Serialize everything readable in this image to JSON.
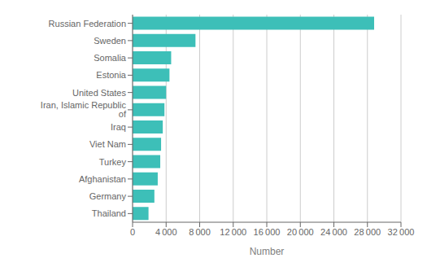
{
  "chart_data": {
    "type": "bar",
    "orientation": "horizontal",
    "categories": [
      "Thailand",
      "Germany",
      "Afghanistan",
      "Turkey",
      "Viet Nam",
      "Iraq",
      "Iran, Islamic Republic of",
      "United States",
      "Estonia",
      "Somalia",
      "Sweden",
      "Russian Federation"
    ],
    "values": [
      1900,
      2600,
      3000,
      3300,
      3400,
      3600,
      3800,
      4000,
      4400,
      4600,
      7500,
      28800
    ],
    "color": "#3dbfb8",
    "xlabel": "Number",
    "xlim": [
      0,
      32000
    ],
    "xticks": [
      0,
      {
        "value": 4000,
        "label": "4 000"
      },
      {
        "value": 8000,
        "label": "8 000"
      },
      {
        "value": 12000,
        "label": "12 000"
      },
      {
        "value": 16000,
        "label": "16 000"
      },
      {
        "value": 20000,
        "label": "20 000"
      },
      {
        "value": 24000,
        "label": "24 000"
      },
      {
        "value": 28000,
        "label": "28 000"
      },
      {
        "value": 32000,
        "label": "32 000"
      }
    ],
    "grid": true
  }
}
